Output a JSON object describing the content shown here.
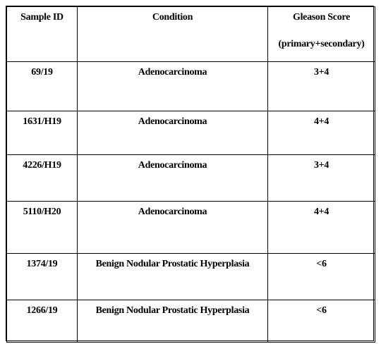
{
  "table": {
    "headers": {
      "sample_id": "Sample ID",
      "condition": "Condition",
      "gleason_title": "Gleason Score",
      "gleason_sub": "(primary+secondary)"
    },
    "rows": [
      {
        "sample_id": "69/19",
        "condition": "Adenocarcinoma",
        "gleason": "3+4"
      },
      {
        "sample_id": "1631/H19",
        "condition": "Adenocarcinoma",
        "gleason": "4+4"
      },
      {
        "sample_id": "4226/H19",
        "condition": "Adenocarcinoma",
        "gleason": "3+4"
      },
      {
        "sample_id": "5110/H20",
        "condition": "Adenocarcinoma",
        "gleason": "4+4"
      },
      {
        "sample_id": "1374/19",
        "condition": "Benign Nodular Prostatic Hyperplasia",
        "gleason": "<6"
      },
      {
        "sample_id": "1266/19",
        "condition": "Benign Nodular Prostatic Hyperplasia",
        "gleason": "<6"
      }
    ]
  }
}
